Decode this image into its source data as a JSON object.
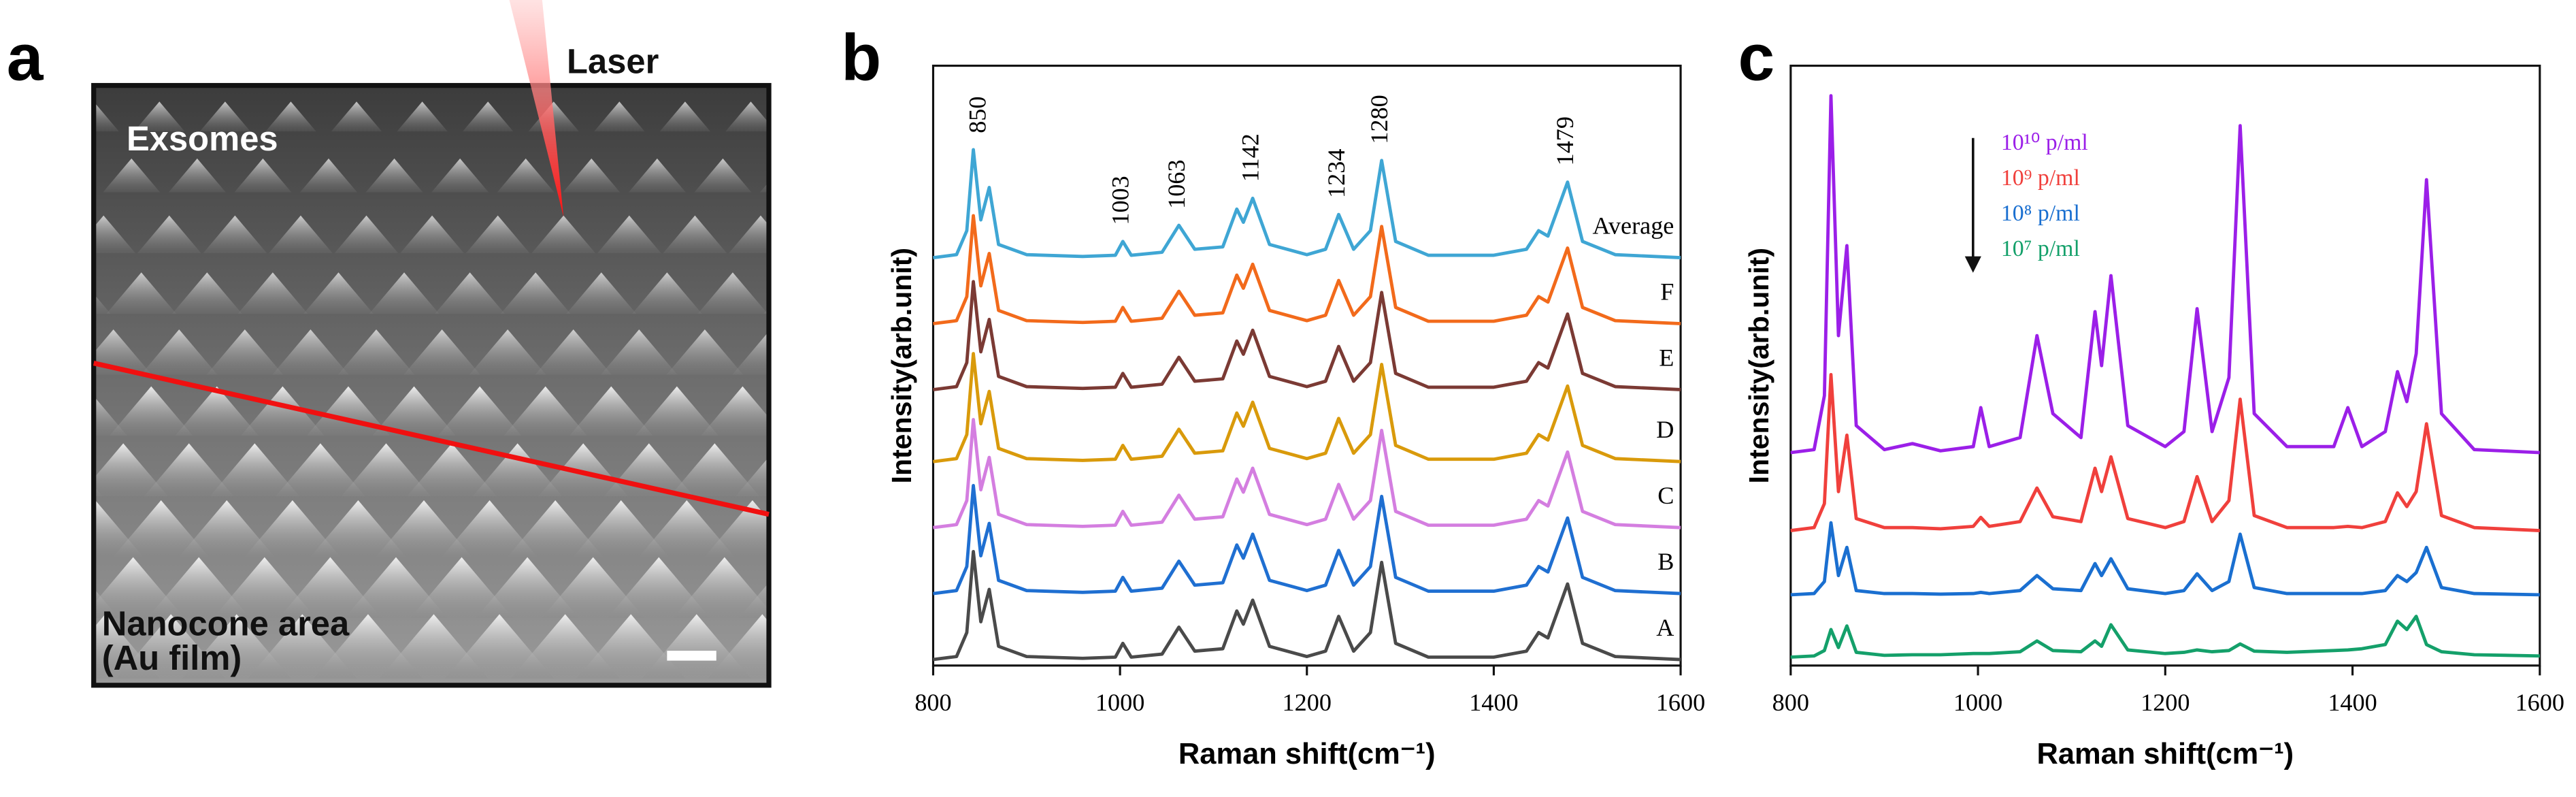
{
  "panel_a": {
    "panel_label": "a",
    "labels": {
      "laser": "Laser",
      "exosomes": "Exsomes",
      "area": "Nanocone area",
      "film": "(Au film)"
    }
  },
  "chart_data": [
    {
      "panel_label": "b",
      "type": "line",
      "xlabel": "Raman shift(cm⁻¹)",
      "ylabel": "Intensity(arb.unit)",
      "x": [
        800,
        825,
        836,
        843,
        851,
        860,
        870,
        900,
        960,
        995,
        1003,
        1012,
        1045,
        1063,
        1080,
        1110,
        1125,
        1132,
        1142,
        1160,
        1200,
        1220,
        1234,
        1250,
        1268,
        1280,
        1295,
        1330,
        1400,
        1435,
        1448,
        1458,
        1479,
        1495,
        1530,
        1600
      ],
      "xlim": [
        800,
        1600
      ],
      "xticks": [
        800,
        1000,
        1200,
        1400,
        1600
      ],
      "ylim": [
        0,
        100
      ],
      "legend": "inline",
      "peak_labels": [
        850,
        1003,
        1063,
        1142,
        1234,
        1280,
        1479
      ],
      "series": [
        {
          "name": "Average",
          "color": "#3fa6d4",
          "values": [
            68,
            68.5,
            72.5,
            86,
            74.3,
            79.7,
            70.2,
            68.5,
            68.2,
            68.4,
            70.7,
            68.4,
            68.9,
            73.4,
            69.4,
            69.8,
            76.1,
            73.9,
            77.9,
            70.2,
            68.5,
            69.4,
            75.2,
            69.4,
            72.5,
            84.2,
            70.7,
            68.4,
            68.4,
            69.4,
            72.5,
            71.6,
            80.6,
            70.7,
            68.5,
            68
          ]
        },
        {
          "name": "F",
          "color": "#f26a1b",
          "values": [
            57,
            57.5,
            61.5,
            75,
            63.3,
            68.7,
            59.2,
            57.5,
            57.2,
            57.4,
            59.7,
            57.4,
            57.9,
            62.4,
            58.4,
            58.8,
            65.1,
            62.9,
            66.9,
            59.2,
            57.5,
            58.4,
            64.2,
            58.4,
            61.5,
            73.2,
            59.7,
            57.4,
            57.4,
            58.4,
            61.5,
            60.6,
            69.6,
            59.7,
            57.5,
            57
          ]
        },
        {
          "name": "E",
          "color": "#7b3a34",
          "values": [
            46,
            46.5,
            50.5,
            64,
            52.3,
            57.7,
            48.2,
            46.5,
            46.2,
            46.4,
            48.7,
            46.4,
            46.9,
            51.4,
            47.4,
            47.8,
            54.1,
            51.9,
            55.9,
            48.2,
            46.5,
            47.4,
            53.2,
            47.4,
            50.5,
            62.2,
            48.7,
            46.4,
            46.4,
            47.4,
            50.5,
            49.6,
            58.6,
            48.7,
            46.5,
            46
          ]
        },
        {
          "name": "D",
          "color": "#d99a0b",
          "values": [
            34,
            34.5,
            38.5,
            52,
            40.3,
            45.7,
            36.2,
            34.5,
            34.2,
            34.4,
            36.7,
            34.4,
            34.9,
            39.4,
            35.4,
            35.8,
            42.1,
            39.9,
            43.9,
            36.2,
            34.5,
            35.4,
            41.2,
            35.4,
            38.5,
            50.2,
            36.7,
            34.4,
            34.4,
            35.4,
            38.5,
            37.6,
            46.6,
            36.7,
            34.5,
            34
          ]
        },
        {
          "name": "C",
          "color": "#d47ee0",
          "values": [
            23,
            23.5,
            27.5,
            41,
            29.3,
            34.7,
            25.2,
            23.5,
            23.2,
            23.4,
            25.7,
            23.4,
            23.9,
            28.4,
            24.4,
            24.8,
            31.1,
            28.9,
            32.9,
            25.2,
            23.5,
            24.4,
            30.2,
            24.4,
            27.5,
            39.2,
            25.7,
            23.4,
            23.4,
            24.4,
            27.5,
            26.6,
            35.6,
            25.7,
            23.5,
            23
          ]
        },
        {
          "name": "B",
          "color": "#1f6fd1",
          "values": [
            12,
            12.5,
            16.5,
            30,
            18.3,
            23.7,
            14.2,
            12.5,
            12.2,
            12.4,
            14.7,
            12.4,
            12.9,
            17.4,
            13.4,
            13.8,
            20.1,
            17.9,
            21.9,
            14.2,
            12.5,
            13.4,
            19.2,
            13.4,
            16.5,
            28.2,
            14.7,
            12.4,
            12.4,
            13.4,
            16.5,
            15.6,
            24.6,
            14.7,
            12.5,
            12
          ]
        },
        {
          "name": "A",
          "color": "#4a4a4a",
          "values": [
            1,
            1.5,
            5.5,
            19,
            7.3,
            12.7,
            3.2,
            1.5,
            1.2,
            1.4,
            3.7,
            1.4,
            1.9,
            6.4,
            2.4,
            2.8,
            9.1,
            6.9,
            10.9,
            3.2,
            1.5,
            2.4,
            8.2,
            2.4,
            5.5,
            17.2,
            3.7,
            1.4,
            1.4,
            2.4,
            5.5,
            4.6,
            13.6,
            3.7,
            1.5,
            1
          ]
        }
      ]
    },
    {
      "panel_label": "c",
      "type": "line",
      "xlabel": "Raman shift(cm⁻¹)",
      "ylabel": "Intensity(arb.unit)",
      "x": [
        800,
        825,
        836,
        843,
        851,
        860,
        870,
        900,
        930,
        960,
        995,
        1003,
        1012,
        1045,
        1063,
        1080,
        1110,
        1125,
        1132,
        1142,
        1160,
        1200,
        1220,
        1234,
        1250,
        1268,
        1280,
        1295,
        1330,
        1380,
        1395,
        1410,
        1435,
        1448,
        1458,
        1468,
        1479,
        1495,
        1530,
        1600
      ],
      "xlim": [
        800,
        1600
      ],
      "xticks": [
        800,
        1000,
        1200,
        1400,
        1600
      ],
      "ylim": [
        0,
        100
      ],
      "legend": "upper left",
      "series": [
        {
          "name": "10¹⁰ p/ml",
          "color": "#9b1fe8",
          "values": [
            35.5,
            36,
            45,
            95,
            55,
            70,
            40,
            36,
            37,
            35.8,
            36.5,
            43,
            36.5,
            38,
            55,
            42,
            38,
            59,
            50,
            65,
            40,
            36.5,
            39,
            59.5,
            39,
            48,
            90,
            42,
            36.5,
            36.5,
            43,
            36.5,
            39,
            49,
            44,
            52,
            81,
            42,
            36,
            35.5
          ]
        },
        {
          "name": "10⁹ p/ml",
          "color": "#f0403c",
          "values": [
            22.5,
            23,
            27,
            48.5,
            29,
            38.4,
            24.5,
            23,
            23,
            22.8,
            23.2,
            24.7,
            23.2,
            24,
            29.6,
            24.8,
            24,
            32.9,
            29,
            34.8,
            24.5,
            23,
            24,
            31.5,
            24,
            27.5,
            44.4,
            25,
            23,
            23,
            23.2,
            23,
            24,
            28.8,
            26.5,
            29,
            40.3,
            25,
            23,
            22.5
          ]
        },
        {
          "name": "10⁸ p/ml",
          "color": "#1a6fd0",
          "values": [
            11.8,
            12,
            14,
            23.8,
            15,
            19.7,
            12.5,
            12,
            12,
            11.9,
            12,
            12.2,
            12,
            12.5,
            15,
            12.8,
            12.5,
            17,
            15,
            17.8,
            12.8,
            12,
            12.5,
            15.3,
            12.5,
            14,
            21.9,
            13,
            12,
            12,
            12,
            12,
            12.5,
            15,
            14,
            15.5,
            19.7,
            13,
            12,
            11.8
          ]
        },
        {
          "name": "10⁷ p/ml",
          "color": "#14a06a",
          "values": [
            1.4,
            1.6,
            2.5,
            6,
            3,
            6.6,
            2.2,
            1.7,
            1.8,
            1.8,
            2,
            2,
            2,
            2.3,
            4.1,
            2.5,
            2.3,
            4.1,
            3.2,
            6.8,
            2.6,
            2,
            2.2,
            2.6,
            2.3,
            2.5,
            3.6,
            2.4,
            2.2,
            2.5,
            2.6,
            2.8,
            3.5,
            7.4,
            6,
            8.2,
            3.5,
            2.3,
            1.8,
            1.6
          ]
        }
      ]
    }
  ]
}
